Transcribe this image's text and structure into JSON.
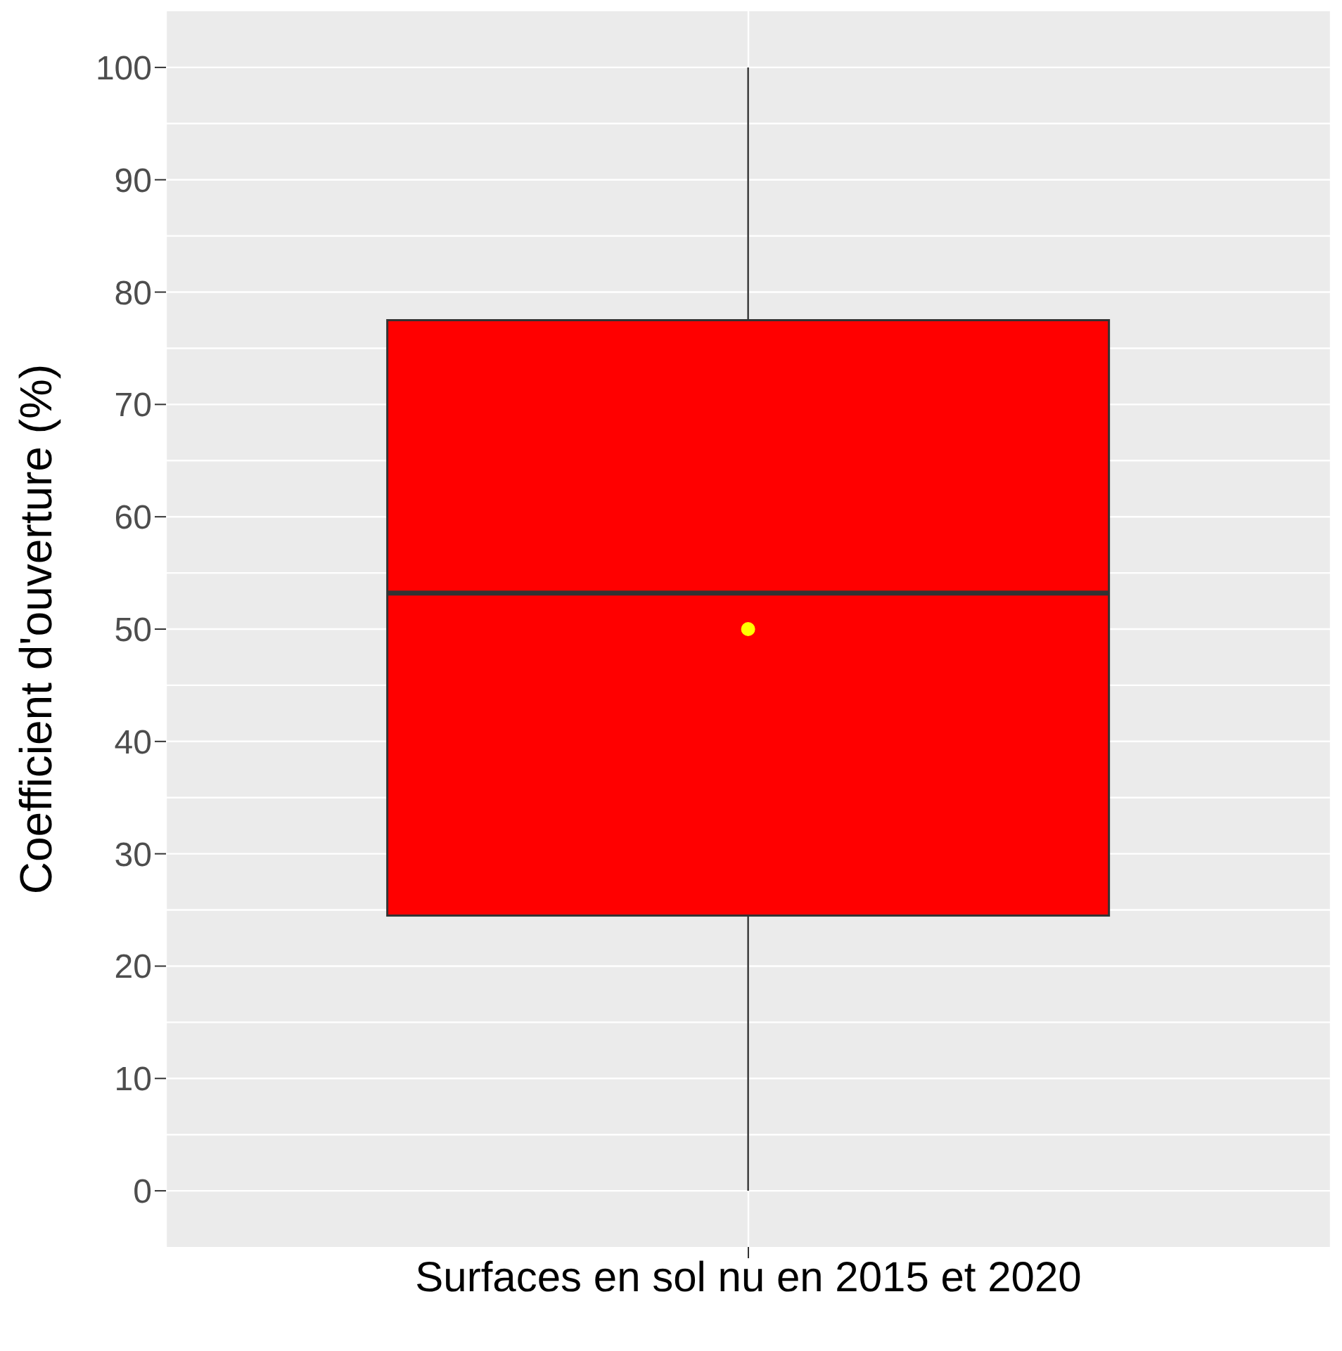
{
  "chart_data": {
    "type": "box",
    "ylabel": "Coefficient d'ouverture (%)",
    "categories": [
      "Surfaces en sol nu en 2015 et 2020"
    ],
    "series": [
      {
        "color": "#ff0000",
        "boxes": [
          {
            "low": 0,
            "q1": 24.5,
            "median": 53.2,
            "q3": 77.5,
            "high": 100,
            "mean": 50
          }
        ]
      }
    ],
    "ylim": [
      -5,
      105
    ],
    "yticks": [
      0,
      10,
      20,
      30,
      40,
      50,
      60,
      70,
      80,
      90,
      100
    ],
    "grid": true
  }
}
